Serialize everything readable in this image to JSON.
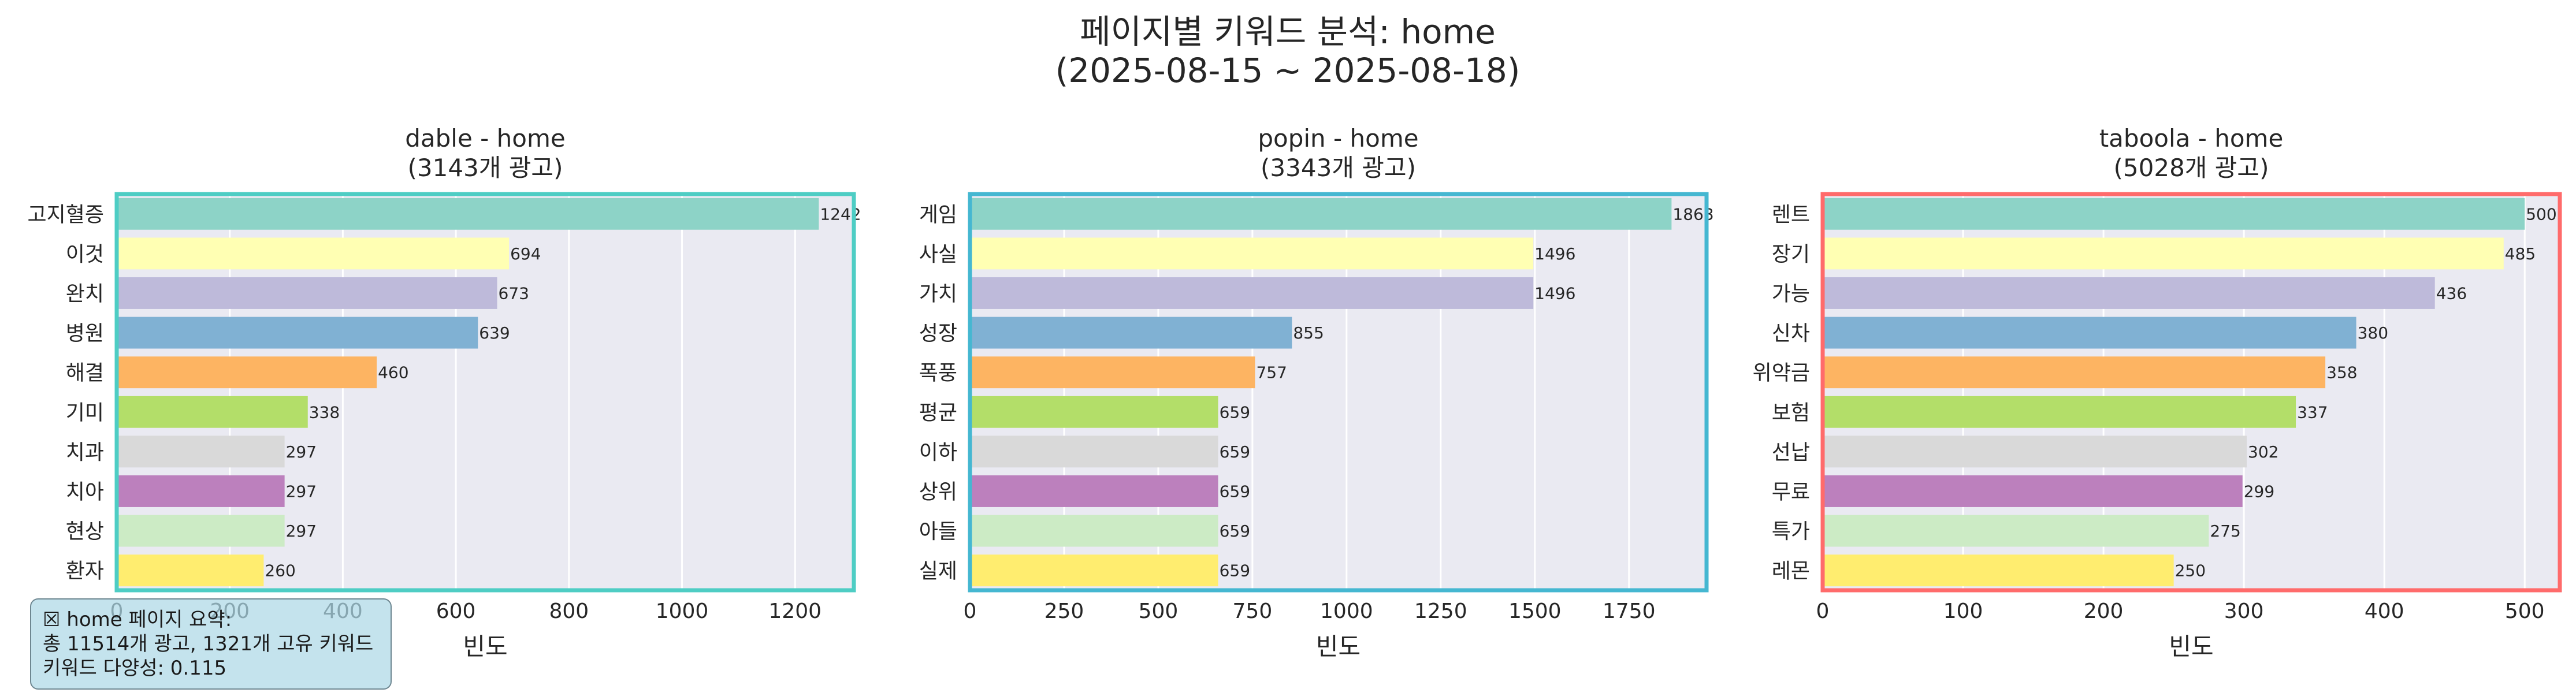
{
  "title": "페이지별 키워드 분석: home",
  "subtitle": "(2025-08-15 ~ 2025-08-18)",
  "summary": {
    "heading": "☒ home 페이지 요약:",
    "line1": "총 11514개 광고, 1321개 고유 키워드",
    "line2": "키워드 다양성: 0.115"
  },
  "colors": {
    "bars": [
      "#8dd3c7",
      "#ffffb3",
      "#bebada",
      "#80b1d3",
      "#fdb462",
      "#b3de69",
      "#d9d9d9",
      "#bc80bd",
      "#ccebc5",
      "#ffed6f"
    ],
    "plot_background": "#eaeaf2",
    "grid": "#ffffff"
  },
  "chart_data": [
    {
      "type": "bar",
      "orientation": "horizontal",
      "title": "dable - home",
      "subtitle": "(3143개 광고)",
      "frame_color": "#4ecdc4",
      "categories": [
        "고지혈증",
        "이것",
        "완치",
        "병원",
        "해결",
        "기미",
        "치과",
        "치아",
        "현상",
        "환자"
      ],
      "values": [
        1242,
        694,
        673,
        639,
        460,
        338,
        297,
        297,
        297,
        260
      ],
      "xlabel": "빈도",
      "xlim": [
        0,
        1304
      ],
      "xticks": [
        0,
        200,
        400,
        600,
        800,
        1000,
        1200
      ],
      "grid": true
    },
    {
      "type": "bar",
      "orientation": "horizontal",
      "title": "popin - home",
      "subtitle": "(3343개 광고)",
      "frame_color": "#45b7d1",
      "categories": [
        "게임",
        "사실",
        "가치",
        "성장",
        "폭풍",
        "평균",
        "이하",
        "상위",
        "아들",
        "실제"
      ],
      "values": [
        1863,
        1496,
        1496,
        855,
        757,
        659,
        659,
        659,
        659,
        659
      ],
      "xlabel": "빈도",
      "xlim": [
        0,
        1956
      ],
      "xticks": [
        0,
        250,
        500,
        750,
        1000,
        1250,
        1500,
        1750
      ],
      "grid": true
    },
    {
      "type": "bar",
      "orientation": "horizontal",
      "title": "taboola - home",
      "subtitle": "(5028개 광고)",
      "frame_color": "#ff6b6b",
      "categories": [
        "렌트",
        "장기",
        "가능",
        "신차",
        "위약금",
        "보험",
        "선납",
        "무료",
        "특가",
        "레몬"
      ],
      "values": [
        500,
        485,
        436,
        380,
        358,
        337,
        302,
        299,
        275,
        250
      ],
      "xlabel": "빈도",
      "xlim": [
        0,
        525
      ],
      "xticks": [
        0,
        100,
        200,
        300,
        400,
        500
      ],
      "grid": true
    }
  ]
}
